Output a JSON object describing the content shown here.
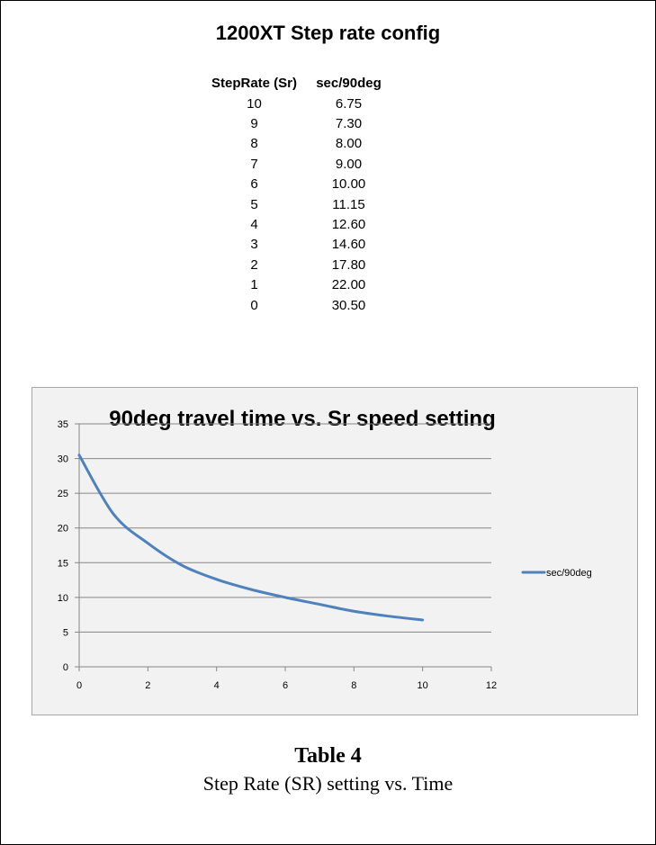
{
  "config_title": "1200XT Step rate config",
  "table": {
    "headers": [
      "StepRate (Sr)",
      "sec/90deg"
    ],
    "rows": [
      [
        "10",
        "6.75"
      ],
      [
        "9",
        "7.30"
      ],
      [
        "8",
        "8.00"
      ],
      [
        "7",
        "9.00"
      ],
      [
        "6",
        "10.00"
      ],
      [
        "5",
        "11.15"
      ],
      [
        "4",
        "12.60"
      ],
      [
        "3",
        "14.60"
      ],
      [
        "2",
        "17.80"
      ],
      [
        "1",
        "22.00"
      ],
      [
        "0",
        "30.50"
      ]
    ]
  },
  "chart_data": {
    "type": "line",
    "title": "90deg travel time vs. Sr speed setting",
    "xlabel": "",
    "ylabel": "",
    "x": [
      0,
      1,
      2,
      3,
      4,
      5,
      6,
      7,
      8,
      9,
      10
    ],
    "series": [
      {
        "name": "sec/90deg",
        "values": [
          30.5,
          22.0,
          17.8,
          14.6,
          12.6,
          11.15,
          10.0,
          9.0,
          8.0,
          7.3,
          6.75
        ],
        "color": "#4f81bd"
      }
    ],
    "xlim": [
      0,
      12
    ],
    "ylim": [
      0,
      35
    ],
    "xticks": [
      "0",
      "2",
      "4",
      "6",
      "8",
      "10",
      "12"
    ],
    "yticks": [
      "0",
      "5",
      "10",
      "15",
      "20",
      "25",
      "30",
      "35"
    ],
    "grid": "horizontal",
    "legend_position": "right",
    "smooth": true
  },
  "caption": {
    "title": "Table 4",
    "subtitle": "Step Rate (SR) setting vs. Time"
  }
}
